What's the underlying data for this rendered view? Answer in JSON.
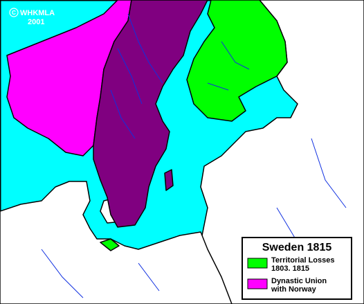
{
  "copyright": {
    "symbol": "C",
    "owner": "WHKMLA",
    "year": "2001"
  },
  "legend": {
    "title": "Sweden 1815",
    "items": [
      {
        "lines": [
          "Territorial Losses",
          "1803. 1815"
        ],
        "color": "#00ff00"
      },
      {
        "lines": [
          "Dynastic Union",
          "with Norway"
        ],
        "color": "#ff00ff"
      }
    ]
  }
}
